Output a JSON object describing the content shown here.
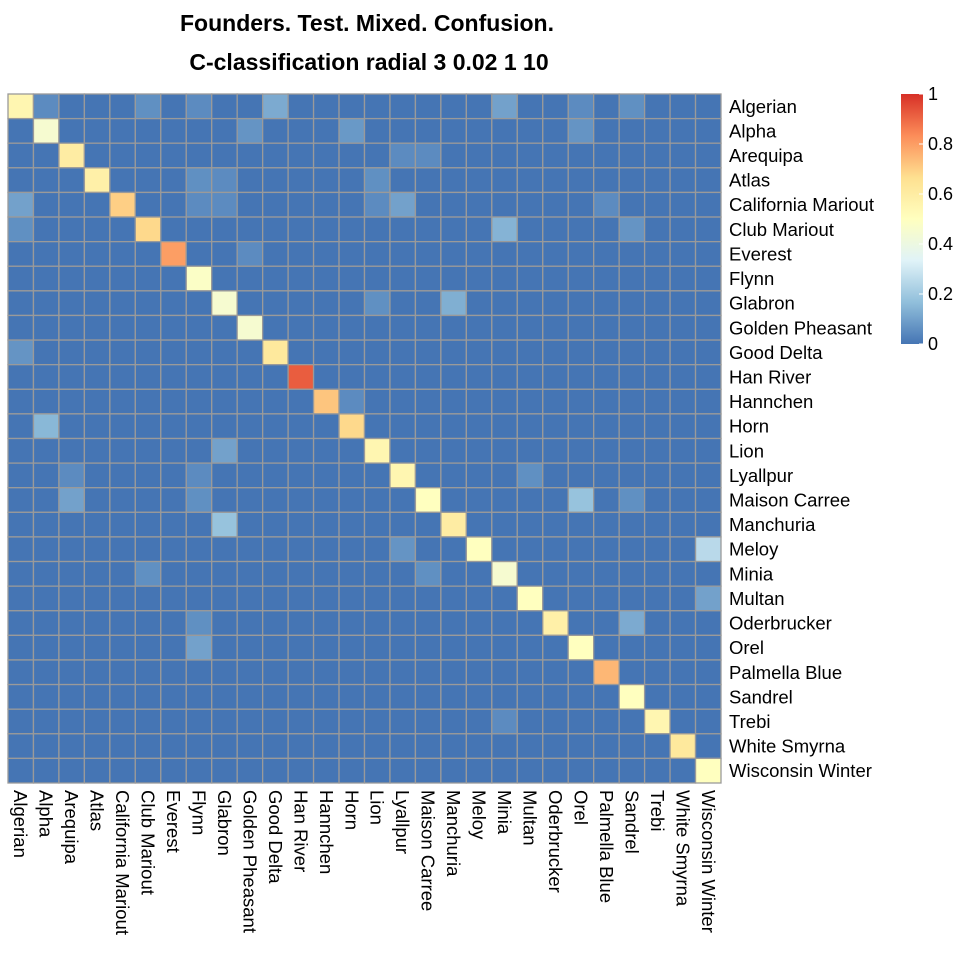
{
  "chart_data": {
    "type": "heatmap",
    "title": "Founders. Test. Mixed. Confusion.",
    "subtitle": "C-classification radial 3 0.02 1 10",
    "labels": [
      "Algerian",
      "Alpha",
      "Arequipa",
      "Atlas",
      "California Mariout",
      "Club Mariout",
      "Everest",
      "Flynn",
      "Glabron",
      "Golden Pheasant",
      "Good Delta",
      "Han River",
      "Hannchen",
      "Horn",
      "Lion",
      "Lyallpur",
      "Maison Carree",
      "Manchuria",
      "Meloy",
      "Minia",
      "Multan",
      "Oderbrucker",
      "Orel",
      "Palmella Blue",
      "Sandrel",
      "Trebi",
      "White Smyrna",
      "Wisconsin Winter"
    ],
    "diagonal": [
      0.55,
      0.45,
      0.6,
      0.58,
      0.7,
      0.68,
      0.8,
      0.48,
      0.45,
      0.45,
      0.62,
      0.92,
      0.72,
      0.68,
      0.55,
      0.55,
      0.5,
      0.6,
      0.5,
      0.45,
      0.5,
      0.58,
      0.5,
      0.75,
      0.5,
      0.55,
      0.62,
      0.5
    ],
    "off_diagonal": [
      {
        "row": "Algerian",
        "col": "Alpha",
        "value": 0.05
      },
      {
        "row": "Algerian",
        "col": "Club Mariout",
        "value": 0.06
      },
      {
        "row": "Algerian",
        "col": "Flynn",
        "value": 0.05
      },
      {
        "row": "Algerian",
        "col": "Good Delta",
        "value": 0.12
      },
      {
        "row": "Algerian",
        "col": "Minia",
        "value": 0.1
      },
      {
        "row": "Algerian",
        "col": "Orel",
        "value": 0.05
      },
      {
        "row": "Algerian",
        "col": "Sandrel",
        "value": 0.06
      },
      {
        "row": "Alpha",
        "col": "Golden Pheasant",
        "value": 0.07
      },
      {
        "row": "Alpha",
        "col": "Horn",
        "value": 0.08
      },
      {
        "row": "Alpha",
        "col": "Orel",
        "value": 0.07
      },
      {
        "row": "Arequipa",
        "col": "Lyallpur",
        "value": 0.05
      },
      {
        "row": "Arequipa",
        "col": "Maison Carree",
        "value": 0.05
      },
      {
        "row": "Atlas",
        "col": "Flynn",
        "value": 0.06
      },
      {
        "row": "Atlas",
        "col": "Glabron",
        "value": 0.05
      },
      {
        "row": "Atlas",
        "col": "Lion",
        "value": 0.06
      },
      {
        "row": "California Mariout",
        "col": "Algerian",
        "value": 0.1
      },
      {
        "row": "California Mariout",
        "col": "Flynn",
        "value": 0.05
      },
      {
        "row": "California Mariout",
        "col": "Glabron",
        "value": 0.05
      },
      {
        "row": "California Mariout",
        "col": "Lion",
        "value": 0.05
      },
      {
        "row": "California Mariout",
        "col": "Lyallpur",
        "value": 0.1
      },
      {
        "row": "California Mariout",
        "col": "Palmella Blue",
        "value": 0.05
      },
      {
        "row": "Club Mariout",
        "col": "Algerian",
        "value": 0.06
      },
      {
        "row": "Club Mariout",
        "col": "Minia",
        "value": 0.14
      },
      {
        "row": "Club Mariout",
        "col": "Sandrel",
        "value": 0.07
      },
      {
        "row": "Everest",
        "col": "Golden Pheasant",
        "value": 0.05
      },
      {
        "row": "Glabron",
        "col": "Lion",
        "value": 0.06
      },
      {
        "row": "Glabron",
        "col": "Manchuria",
        "value": 0.13
      },
      {
        "row": "Good Delta",
        "col": "Algerian",
        "value": 0.07
      },
      {
        "row": "Hannchen",
        "col": "Horn",
        "value": 0.05
      },
      {
        "row": "Horn",
        "col": "Alpha",
        "value": 0.15
      },
      {
        "row": "Lion",
        "col": "Glabron",
        "value": 0.1
      },
      {
        "row": "Lyallpur",
        "col": "Arequipa",
        "value": 0.05
      },
      {
        "row": "Lyallpur",
        "col": "Flynn",
        "value": 0.05
      },
      {
        "row": "Lyallpur",
        "col": "Multan",
        "value": 0.06
      },
      {
        "row": "Maison Carree",
        "col": "Arequipa",
        "value": 0.1
      },
      {
        "row": "Maison Carree",
        "col": "Flynn",
        "value": 0.06
      },
      {
        "row": "Maison Carree",
        "col": "Orel",
        "value": 0.18
      },
      {
        "row": "Maison Carree",
        "col": "Sandrel",
        "value": 0.06
      },
      {
        "row": "Manchuria",
        "col": "Glabron",
        "value": 0.18
      },
      {
        "row": "Meloy",
        "col": "Lyallpur",
        "value": 0.07
      },
      {
        "row": "Meloy",
        "col": "Wisconsin Winter",
        "value": 0.25
      },
      {
        "row": "Minia",
        "col": "Club Mariout",
        "value": 0.06
      },
      {
        "row": "Minia",
        "col": "Maison Carree",
        "value": 0.06
      },
      {
        "row": "Multan",
        "col": "Wisconsin Winter",
        "value": 0.1
      },
      {
        "row": "Oderbrucker",
        "col": "Flynn",
        "value": 0.06
      },
      {
        "row": "Oderbrucker",
        "col": "Sandrel",
        "value": 0.12
      },
      {
        "row": "Orel",
        "col": "Flynn",
        "value": 0.1
      },
      {
        "row": "Trebi",
        "col": "Minia",
        "value": 0.05
      }
    ],
    "colorscale": {
      "min": 0,
      "max": 1,
      "stops": [
        "#4575b4",
        "#91bfdb",
        "#e0f3f8",
        "#ffffbf",
        "#fee090",
        "#fc8d59",
        "#d73027"
      ]
    },
    "legend": {
      "ticks": [
        "1",
        "0.8",
        "0.6",
        "0.4",
        "0.2",
        "0"
      ],
      "tick_values": [
        1,
        0.8,
        0.6,
        0.4,
        0.2,
        0
      ]
    }
  }
}
